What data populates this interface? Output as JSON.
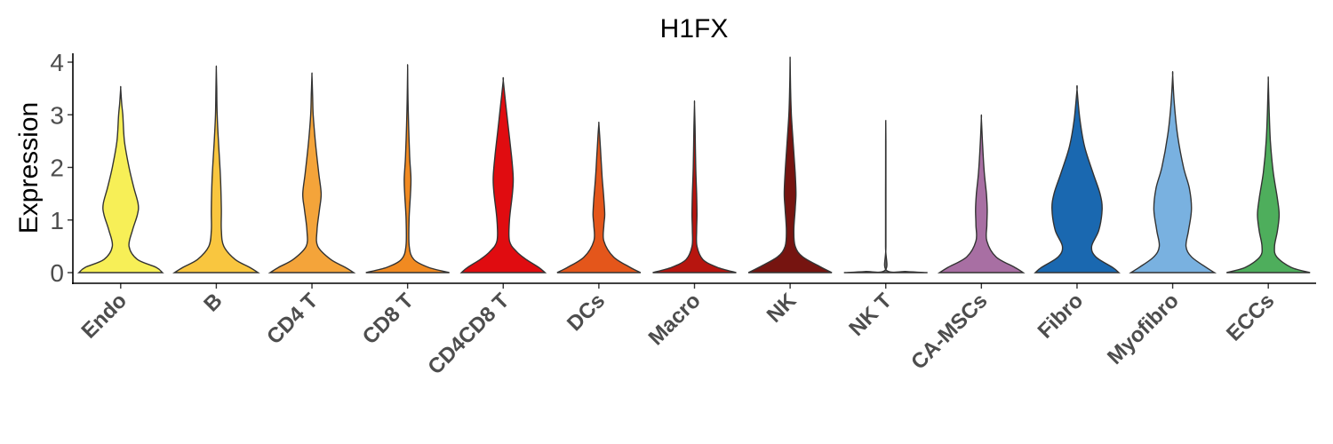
{
  "chart_data": {
    "type": "violin",
    "title": "H1FX",
    "ylabel": "Expression",
    "xlabel": "",
    "ylim": [
      -0.2,
      4.2
    ],
    "yticks": [
      0,
      1,
      2,
      3,
      4
    ],
    "grid": false,
    "legend": "none",
    "categories": [
      "Endo",
      "B",
      "CD4 T",
      "CD8 T",
      "CD4CD8 T",
      "DCs",
      "Macro",
      "NK",
      "NK T",
      "CA-MSCs",
      "Fibro",
      "Myofibro",
      "ECCs"
    ],
    "series": [
      {
        "category": "Endo",
        "color": "#f7ef57",
        "max": 3.5,
        "density": [
          [
            0,
            1.0
          ],
          [
            0.1,
            0.85
          ],
          [
            0.25,
            0.4
          ],
          [
            0.5,
            0.2
          ],
          [
            0.8,
            0.28
          ],
          [
            1.1,
            0.4
          ],
          [
            1.3,
            0.42
          ],
          [
            1.6,
            0.32
          ],
          [
            2.0,
            0.2
          ],
          [
            2.5,
            0.09
          ],
          [
            3.0,
            0.05
          ],
          [
            3.2,
            0.025
          ],
          [
            3.5,
            0
          ]
        ]
      },
      {
        "category": "B",
        "color": "#f9c63f",
        "max": 3.88,
        "density": [
          [
            0,
            1.0
          ],
          [
            0.1,
            0.8
          ],
          [
            0.25,
            0.45
          ],
          [
            0.5,
            0.18
          ],
          [
            0.8,
            0.12
          ],
          [
            1.2,
            0.12
          ],
          [
            1.8,
            0.1
          ],
          [
            2.5,
            0.05
          ],
          [
            3.0,
            0.02
          ],
          [
            3.5,
            0.01
          ],
          [
            3.88,
            0
          ]
        ]
      },
      {
        "category": "CD4 T",
        "color": "#f4a43a",
        "max": 3.75,
        "density": [
          [
            0,
            1.0
          ],
          [
            0.1,
            0.8
          ],
          [
            0.25,
            0.45
          ],
          [
            0.5,
            0.14
          ],
          [
            0.8,
            0.12
          ],
          [
            1.2,
            0.18
          ],
          [
            1.5,
            0.22
          ],
          [
            1.9,
            0.16
          ],
          [
            2.5,
            0.08
          ],
          [
            3.0,
            0.03
          ],
          [
            3.4,
            0.015
          ],
          [
            3.75,
            0
          ]
        ]
      },
      {
        "category": "CD8 T",
        "color": "#f18a21",
        "max": 3.88,
        "density": [
          [
            0,
            1.0
          ],
          [
            0.1,
            0.5
          ],
          [
            0.25,
            0.15
          ],
          [
            0.5,
            0.04
          ],
          [
            1.0,
            0.035
          ],
          [
            1.5,
            0.07
          ],
          [
            1.8,
            0.08
          ],
          [
            2.2,
            0.05
          ],
          [
            2.8,
            0.025
          ],
          [
            3.3,
            0.01
          ],
          [
            3.88,
            0
          ]
        ]
      },
      {
        "category": "CD4CD8 T",
        "color": "#e00c10",
        "max": 3.65,
        "density": [
          [
            0,
            1.0
          ],
          [
            0.1,
            0.85
          ],
          [
            0.25,
            0.55
          ],
          [
            0.4,
            0.32
          ],
          [
            0.6,
            0.15
          ],
          [
            1.0,
            0.15
          ],
          [
            1.5,
            0.22
          ],
          [
            1.8,
            0.24
          ],
          [
            2.2,
            0.2
          ],
          [
            2.7,
            0.13
          ],
          [
            3.2,
            0.06
          ],
          [
            3.65,
            0
          ]
        ]
      },
      {
        "category": "DCs",
        "color": "#e4561b",
        "max": 2.83,
        "density": [
          [
            0,
            1.0
          ],
          [
            0.1,
            0.75
          ],
          [
            0.3,
            0.35
          ],
          [
            0.6,
            0.12
          ],
          [
            0.9,
            0.12
          ],
          [
            1.1,
            0.14
          ],
          [
            1.4,
            0.12
          ],
          [
            1.8,
            0.08
          ],
          [
            2.2,
            0.05
          ],
          [
            2.6,
            0.02
          ],
          [
            2.83,
            0
          ]
        ]
      },
      {
        "category": "Macro",
        "color": "#b7150f",
        "max": 3.2,
        "density": [
          [
            0,
            1.0
          ],
          [
            0.1,
            0.55
          ],
          [
            0.25,
            0.2
          ],
          [
            0.5,
            0.06
          ],
          [
            0.8,
            0.05
          ],
          [
            1.1,
            0.06
          ],
          [
            1.5,
            0.05
          ],
          [
            2.0,
            0.03
          ],
          [
            2.7,
            0.015
          ],
          [
            3.2,
            0
          ]
        ]
      },
      {
        "category": "NK",
        "color": "#761410",
        "max": 4.03,
        "density": [
          [
            0,
            1.0
          ],
          [
            0.1,
            0.75
          ],
          [
            0.3,
            0.3
          ],
          [
            0.5,
            0.12
          ],
          [
            0.8,
            0.09
          ],
          [
            1.2,
            0.12
          ],
          [
            1.5,
            0.14
          ],
          [
            1.9,
            0.12
          ],
          [
            2.5,
            0.07
          ],
          [
            3.0,
            0.03
          ],
          [
            3.5,
            0.01
          ],
          [
            4.03,
            0
          ]
        ]
      },
      {
        "category": "NK T",
        "color": "#6e6e6e",
        "max": 2.85,
        "density": [
          [
            0,
            1.0
          ],
          [
            0.02,
            0.5
          ],
          [
            0.05,
            0.01
          ],
          [
            0.5,
            0.004
          ],
          [
            1.5,
            0.004
          ],
          [
            2.5,
            0.003
          ],
          [
            2.85,
            0
          ]
        ]
      },
      {
        "category": "CA-MSCs",
        "color": "#a86fa3",
        "max": 2.93,
        "density": [
          [
            0,
            1.0
          ],
          [
            0.1,
            0.8
          ],
          [
            0.3,
            0.35
          ],
          [
            0.6,
            0.13
          ],
          [
            0.9,
            0.13
          ],
          [
            1.2,
            0.14
          ],
          [
            1.5,
            0.12
          ],
          [
            1.9,
            0.07
          ],
          [
            2.4,
            0.03
          ],
          [
            2.93,
            0
          ]
        ]
      },
      {
        "category": "Fibro",
        "color": "#1a68b0",
        "max": 3.48,
        "density": [
          [
            0,
            1.0
          ],
          [
            0.1,
            0.85
          ],
          [
            0.3,
            0.45
          ],
          [
            0.5,
            0.35
          ],
          [
            0.8,
            0.52
          ],
          [
            1.2,
            0.6
          ],
          [
            1.5,
            0.55
          ],
          [
            1.9,
            0.38
          ],
          [
            2.4,
            0.18
          ],
          [
            2.9,
            0.07
          ],
          [
            3.48,
            0
          ]
        ]
      },
      {
        "category": "Myofibro",
        "color": "#79b1e0",
        "max": 3.75,
        "density": [
          [
            0,
            1.0
          ],
          [
            0.1,
            0.8
          ],
          [
            0.3,
            0.45
          ],
          [
            0.5,
            0.32
          ],
          [
            0.8,
            0.38
          ],
          [
            1.2,
            0.45
          ],
          [
            1.6,
            0.4
          ],
          [
            2.0,
            0.26
          ],
          [
            2.6,
            0.12
          ],
          [
            3.2,
            0.04
          ],
          [
            3.75,
            0
          ]
        ]
      },
      {
        "category": "ECCs",
        "color": "#4eae5c",
        "max": 3.65,
        "density": [
          [
            0,
            1.0
          ],
          [
            0.1,
            0.55
          ],
          [
            0.3,
            0.2
          ],
          [
            0.5,
            0.15
          ],
          [
            0.8,
            0.22
          ],
          [
            1.1,
            0.26
          ],
          [
            1.4,
            0.22
          ],
          [
            1.9,
            0.12
          ],
          [
            2.5,
            0.05
          ],
          [
            3.1,
            0.02
          ],
          [
            3.65,
            0
          ]
        ]
      }
    ]
  }
}
